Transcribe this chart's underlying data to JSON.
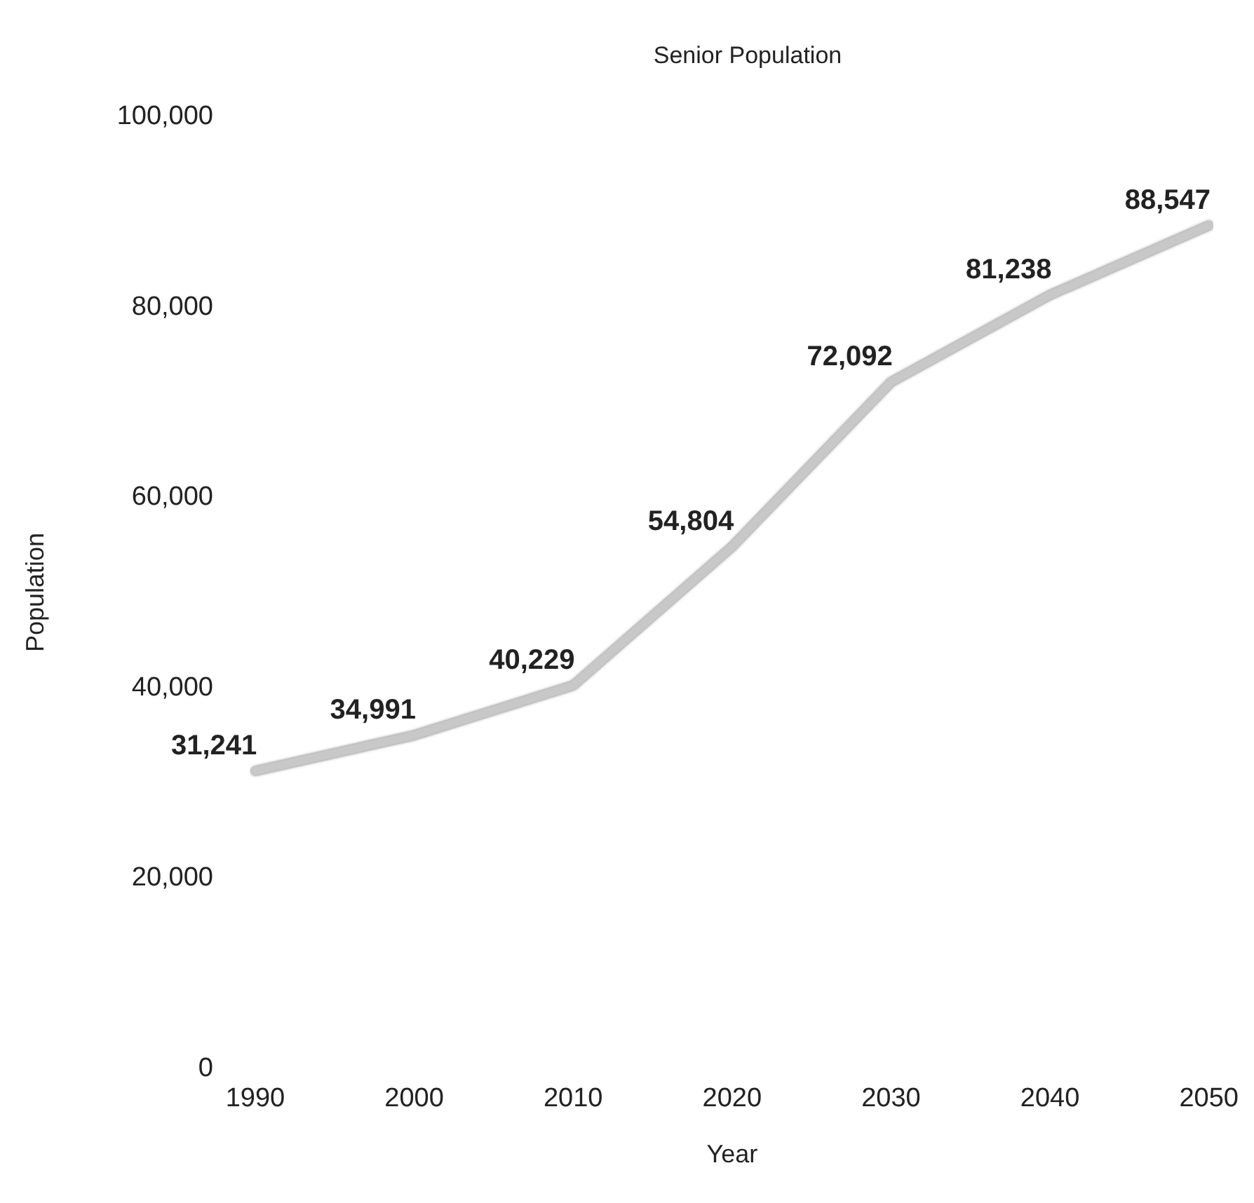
{
  "chart_data": {
    "type": "line",
    "title": "Senior Population",
    "xlabel": "Year",
    "ylabel": "Population",
    "x": [
      1990,
      2000,
      2010,
      2020,
      2030,
      2040,
      2050
    ],
    "series": [
      {
        "color": "#c8c8c8",
        "values": [
          31241,
          34991,
          40229,
          54804,
          72092,
          81238,
          88547
        ],
        "value_labels": [
          "31,241",
          "34,991",
          "40,229",
          "54,804",
          "72,092",
          "81,238",
          "88,547"
        ]
      }
    ],
    "xlim": [
      1990,
      2050
    ],
    "xticks": [
      1990,
      2000,
      2010,
      2020,
      2030,
      2040,
      2050
    ],
    "ylim": [
      0,
      100000
    ],
    "yticks": [
      0,
      {
        "value": 20000,
        "label": "20,000"
      },
      {
        "value": 40000,
        "label": "40,000"
      },
      {
        "value": 60000,
        "label": "60,000"
      },
      {
        "value": 80000,
        "label": "80,000"
      },
      {
        "value": 100000,
        "label": "100,000"
      }
    ],
    "grid": false,
    "marker": "none",
    "line_style": "solid"
  }
}
